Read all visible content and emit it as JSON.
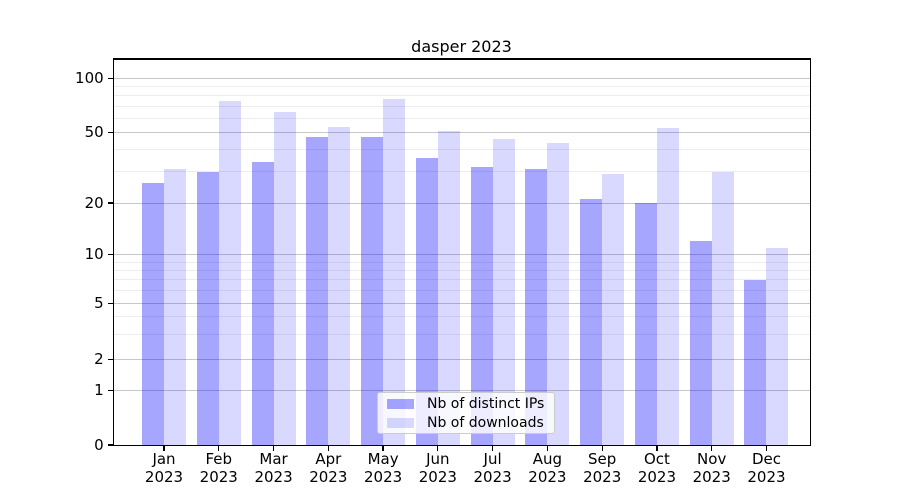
{
  "figure": {
    "title": "dasper 2023"
  },
  "chart_data": {
    "type": "bar",
    "title": "dasper 2023",
    "categories": [
      "Jan 2023",
      "Feb 2023",
      "Mar 2023",
      "Apr 2023",
      "May 2023",
      "Jun 2023",
      "Jul 2023",
      "Aug 2023",
      "Sep 2023",
      "Oct 2023",
      "Nov 2023",
      "Dec 2023"
    ],
    "x_tick_month": [
      "Jan",
      "Feb",
      "Mar",
      "Apr",
      "May",
      "Jun",
      "Jul",
      "Aug",
      "Sep",
      "Oct",
      "Nov",
      "Dec"
    ],
    "x_tick_year": "2023",
    "series": [
      {
        "name": "Nb of distinct IPs",
        "color": "rgba(0,0,255,0.35)",
        "values": [
          26,
          30,
          34,
          47,
          47,
          36,
          32,
          31,
          21,
          20,
          12,
          7
        ]
      },
      {
        "name": "Nb of downloads",
        "color": "rgba(0,0,255,0.15)",
        "values": [
          31,
          75,
          65,
          54,
          77,
          51,
          46,
          44,
          29,
          53,
          30,
          11
        ]
      }
    ],
    "yscale": "symlog",
    "ylim": [
      0,
      130
    ],
    "yticks": [
      0,
      1,
      2,
      5,
      10,
      20,
      50,
      100
    ],
    "minor_yticks": [
      3,
      4,
      6,
      7,
      8,
      9,
      30,
      40,
      60,
      70,
      80,
      90
    ],
    "grid": true,
    "legend_position": "lower center"
  },
  "colors": {
    "background": "#ffffff",
    "spine": "#000000",
    "major_grid": "#c8c8c8",
    "minor_grid": "#ededed",
    "legend_border": "#cccccc",
    "tick_label": "#000000"
  }
}
